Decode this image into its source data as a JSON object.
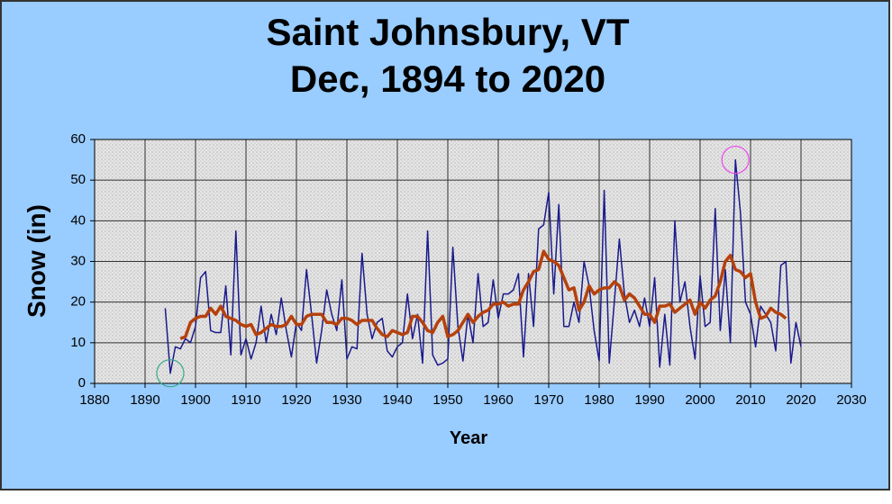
{
  "chart_data": {
    "type": "line",
    "title": "Saint Johnsbury, VT",
    "subtitle": "Dec, 1894 to 2020",
    "x_label": "Year",
    "y_label": "Snow (in)",
    "x": [
      1894,
      1895,
      1896,
      1897,
      1898,
      1899,
      1900,
      1901,
      1902,
      1903,
      1904,
      1905,
      1906,
      1907,
      1908,
      1909,
      1910,
      1911,
      1912,
      1913,
      1914,
      1915,
      1916,
      1917,
      1918,
      1919,
      1920,
      1921,
      1922,
      1923,
      1924,
      1925,
      1926,
      1927,
      1928,
      1929,
      1930,
      1931,
      1932,
      1933,
      1934,
      1935,
      1936,
      1937,
      1938,
      1939,
      1940,
      1941,
      1942,
      1943,
      1944,
      1945,
      1946,
      1947,
      1948,
      1949,
      1950,
      1951,
      1952,
      1953,
      1954,
      1955,
      1956,
      1957,
      1958,
      1959,
      1960,
      1961,
      1962,
      1963,
      1964,
      1965,
      1966,
      1967,
      1968,
      1969,
      1970,
      1971,
      1972,
      1973,
      1974,
      1975,
      1976,
      1977,
      1978,
      1979,
      1980,
      1981,
      1982,
      1983,
      1984,
      1985,
      1986,
      1987,
      1988,
      1989,
      1990,
      1991,
      1992,
      1993,
      1994,
      1995,
      1996,
      1997,
      1998,
      1999,
      2000,
      2001,
      2002,
      2003,
      2004,
      2005,
      2006,
      2007,
      2008,
      2009,
      2010,
      2011,
      2012,
      2013,
      2014,
      2015,
      2016,
      2017,
      2018,
      2019,
      2020
    ],
    "series": [
      {
        "color": "#1a1a8c",
        "values": [
          18.5,
          2.5,
          9,
          8.5,
          11,
          10,
          14,
          26,
          27.5,
          13,
          12.5,
          12.5,
          24,
          7,
          37.5,
          7,
          11,
          6,
          10,
          19,
          10,
          17,
          12,
          21,
          13,
          6.5,
          15,
          13,
          28,
          17,
          5,
          13,
          23,
          17,
          13,
          25.5,
          6,
          9,
          8.5,
          32,
          17,
          11,
          15,
          16,
          8,
          6.5,
          9,
          10,
          22,
          11,
          17,
          5,
          37.5,
          7,
          4.5,
          5,
          6,
          33.5,
          14,
          5.5,
          17,
          10,
          27,
          14,
          15,
          25.5,
          16,
          22,
          22,
          23,
          27,
          6.5,
          27,
          14,
          38,
          39,
          47,
          22,
          44,
          14,
          14,
          20,
          15,
          30,
          24,
          13,
          5.5,
          47.5,
          5,
          20,
          35.5,
          22,
          15,
          18,
          14,
          21,
          14,
          26,
          4,
          17,
          4.5,
          40,
          20,
          25,
          14,
          6,
          26.5,
          14,
          15,
          43,
          13,
          28,
          10,
          55,
          42,
          20,
          17,
          9,
          19,
          17,
          15,
          8,
          29,
          30,
          5,
          15,
          9
        ]
      },
      {
        "color": "#b5410c",
        "values": [
          null,
          null,
          null,
          11,
          11.5,
          15,
          16,
          16.5,
          16.5,
          18.5,
          17,
          19,
          16.5,
          16,
          15.5,
          14.5,
          14,
          14.5,
          12,
          12.5,
          13.5,
          14.5,
          14,
          14,
          14.5,
          16.5,
          14.5,
          14.5,
          16.5,
          17,
          17,
          17,
          15,
          15,
          14.5,
          16,
          16,
          15.5,
          14.5,
          15.5,
          15.5,
          15.5,
          13.5,
          12,
          11.5,
          13,
          12.5,
          12,
          12.5,
          16.5,
          16.5,
          15,
          13,
          12.5,
          15,
          16.5,
          11.5,
          12,
          13,
          15,
          17,
          15,
          16.5,
          17.5,
          18,
          19.5,
          19.5,
          20,
          19,
          19.5,
          19.5,
          23,
          25,
          27.5,
          28,
          32.5,
          30.5,
          30,
          29,
          26,
          23,
          23.5,
          18,
          20,
          24,
          22,
          23,
          23.5,
          23.5,
          25,
          24,
          20.5,
          22,
          21,
          19,
          17,
          17,
          15,
          19,
          19,
          19.5,
          17.5,
          18.5,
          19.5,
          20.5,
          17,
          20,
          18.5,
          20.5,
          21.5,
          25,
          30,
          31.5,
          28,
          27.5,
          26,
          27,
          20,
          16,
          16.5,
          18.5,
          17.5,
          17,
          16,
          null,
          null,
          null
        ]
      }
    ],
    "xlim": [
      1880,
      2030
    ],
    "xticks": [
      1880,
      1890,
      1900,
      1910,
      1920,
      1930,
      1940,
      1950,
      1960,
      1970,
      1980,
      1990,
      2000,
      2010,
      2020,
      2030
    ],
    "ylim": [
      0,
      60
    ],
    "yticks": [
      0,
      10,
      20,
      30,
      40,
      50,
      60
    ],
    "grid": true
  }
}
